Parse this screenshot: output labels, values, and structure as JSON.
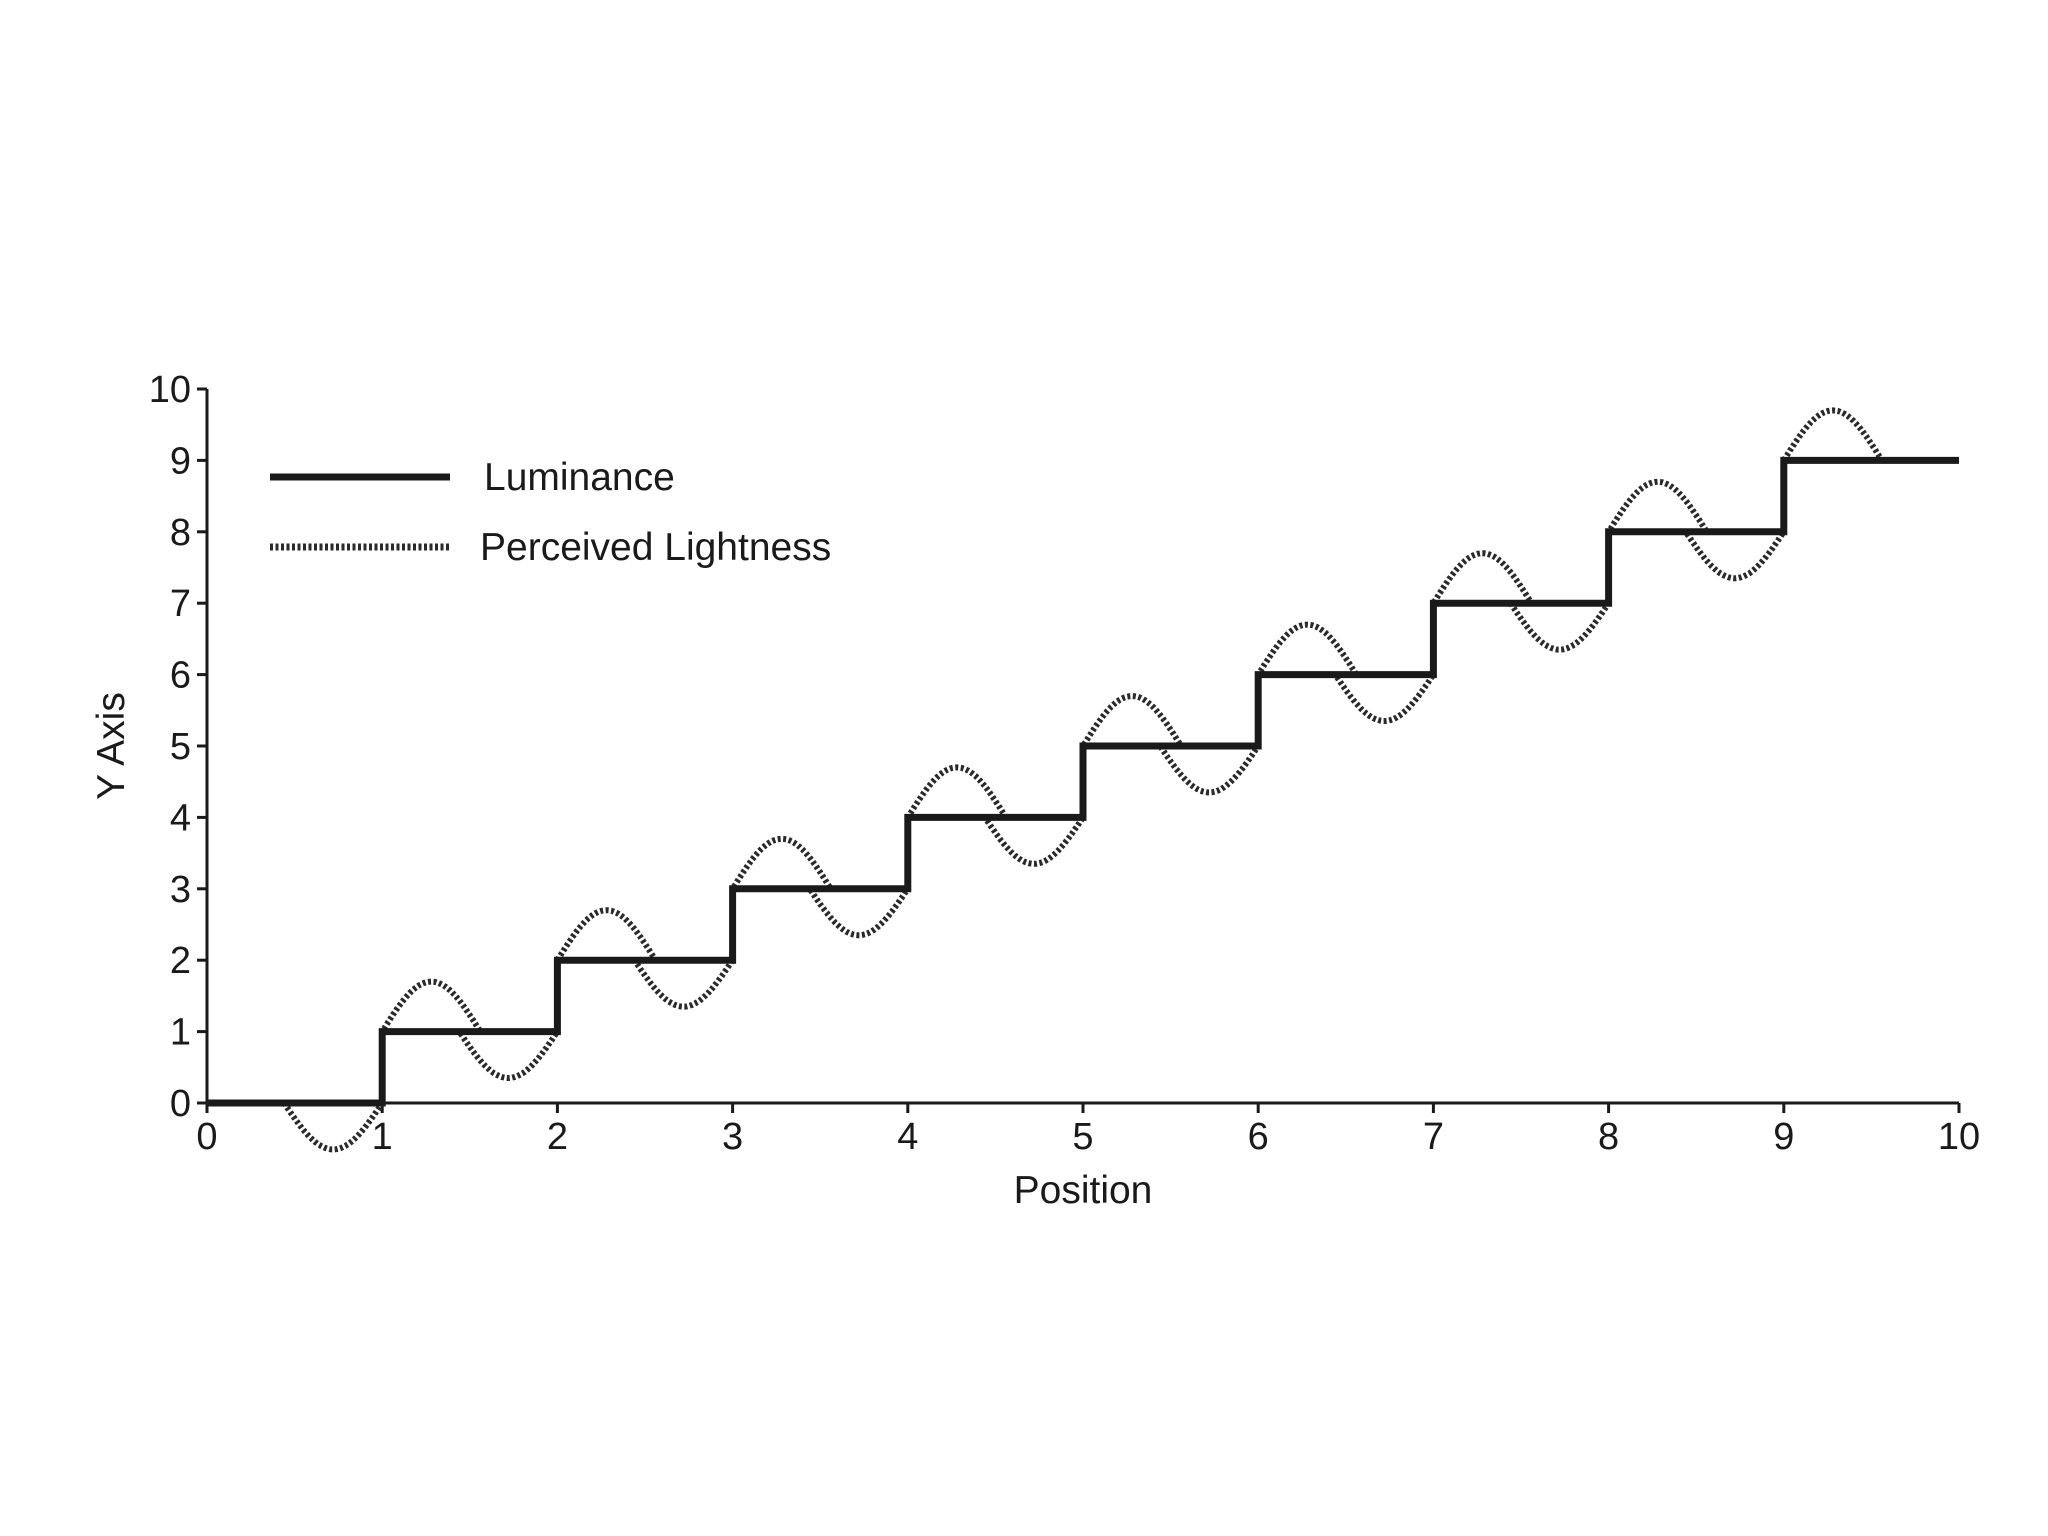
{
  "chart_data": {
    "type": "line",
    "xlabel": "Position",
    "ylabel": "Y Axis",
    "xlim": [
      0,
      10
    ],
    "ylim": [
      0,
      10
    ],
    "xticks": [
      "0",
      "1",
      "2",
      "3",
      "4",
      "5",
      "6",
      "7",
      "8",
      "9",
      "10"
    ],
    "yticks": [
      "0",
      "1",
      "2",
      "3",
      "4",
      "5",
      "6",
      "7",
      "8",
      "9",
      "10"
    ],
    "grid": false,
    "legend_position": "top-left",
    "series": [
      {
        "name": "Luminance",
        "style": "solid",
        "color": "#1a1a1a",
        "step_x": [
          0,
          1,
          2,
          3,
          4,
          5,
          6,
          7,
          8,
          9,
          10
        ],
        "step_y": [
          0,
          1,
          2,
          3,
          4,
          5,
          6,
          7,
          8,
          9
        ]
      },
      {
        "name": "Perceived Lightness",
        "style": "dotted",
        "color": "#2a2a2a",
        "overshoot_undershoot": [
          {
            "edge": 1,
            "undershoot_min": -0.65,
            "overshoot_max": 1.7
          },
          {
            "edge": 2,
            "undershoot_min": 0.35,
            "overshoot_max": 2.7
          },
          {
            "edge": 3,
            "undershoot_min": 1.35,
            "overshoot_max": 3.7
          },
          {
            "edge": 4,
            "undershoot_min": 2.35,
            "overshoot_max": 4.7
          },
          {
            "edge": 5,
            "undershoot_min": 3.35,
            "overshoot_max": 5.7
          },
          {
            "edge": 6,
            "undershoot_min": 4.35,
            "overshoot_max": 6.7
          },
          {
            "edge": 7,
            "undershoot_min": 5.35,
            "overshoot_max": 7.7
          },
          {
            "edge": 8,
            "undershoot_min": 6.35,
            "overshoot_max": 8.7
          },
          {
            "edge": 9,
            "undershoot_min": 7.35,
            "overshoot_max": 9.7
          }
        ]
      }
    ]
  }
}
